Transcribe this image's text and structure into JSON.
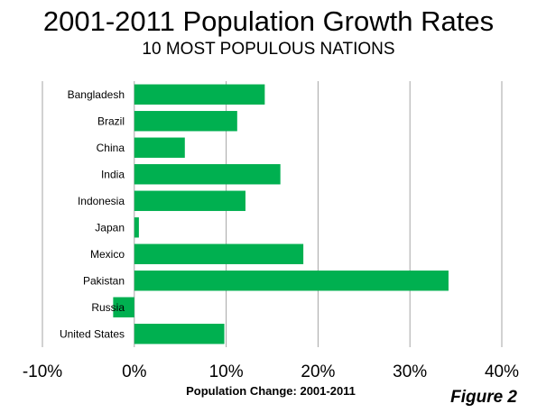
{
  "header": {
    "title": "2001-2011 Population Growth Rates",
    "subtitle": "10 MOST POPULOUS NATIONS"
  },
  "figure_label": "Figure 2",
  "chart_data": {
    "type": "bar",
    "orientation": "horizontal",
    "title": "2001-2011 Population Growth Rates",
    "subtitle": "10 MOST POPULOUS NATIONS",
    "xlabel": "Population Change: 2001-2011",
    "ylabel": "",
    "categories": [
      "Bangladesh",
      "Brazil",
      "China",
      "India",
      "Indonesia",
      "Japan",
      "Mexico",
      "Pakistan",
      "Russia",
      "United States"
    ],
    "values": [
      14.2,
      11.2,
      5.5,
      15.9,
      12.1,
      0.5,
      18.4,
      34.2,
      -2.3,
      9.8
    ],
    "xlim": [
      -10,
      40
    ],
    "xticks": [
      "-10%",
      "0%",
      "10%",
      "20%",
      "30%",
      "40%"
    ],
    "xtick_values": [
      -10,
      0,
      10,
      20,
      30,
      40
    ],
    "grid": true,
    "legend": "none",
    "bar_color": "#00b050",
    "grid_color": "#a6a6a6"
  }
}
